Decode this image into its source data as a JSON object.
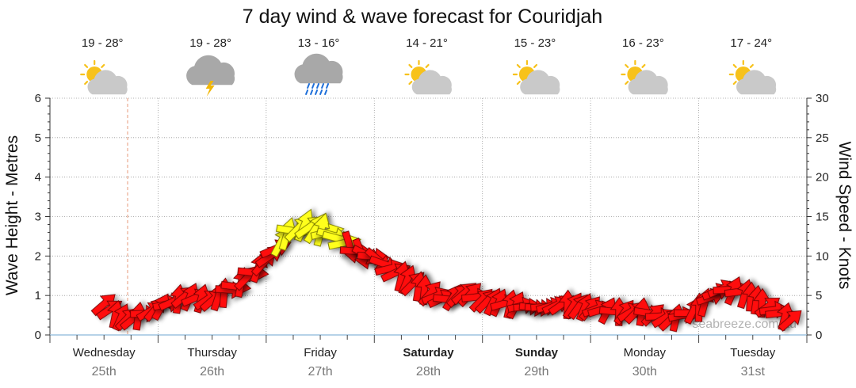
{
  "chart_data": {
    "type": "line",
    "title": "7 day wind & wave forecast for Couridjah",
    "ylabel_left": "Wave Height - Metres",
    "ylabel_right": "Wind Speed - Knots",
    "y_left_range": [
      0,
      6
    ],
    "y_left_ticks": [
      "0",
      "1",
      "2",
      "3",
      "4",
      "5",
      "6"
    ],
    "y_right_range": [
      0,
      30
    ],
    "y_right_ticks": [
      "0",
      "5",
      "10",
      "15",
      "20",
      "25",
      "30"
    ],
    "grid": true,
    "watermark": "seabreeze.com.au",
    "days": [
      {
        "day": "Wednesday",
        "date": "25th",
        "bold": false,
        "temp": "19 - 28°",
        "icon": "partly-sunny-icon"
      },
      {
        "day": "Thursday",
        "date": "26th",
        "bold": false,
        "temp": "19 - 28°",
        "icon": "storm-cloud-icon"
      },
      {
        "day": "Friday",
        "date": "27th",
        "bold": false,
        "temp": "13 - 16°",
        "icon": "rain-cloud-icon"
      },
      {
        "day": "Saturday",
        "date": "28th",
        "bold": true,
        "temp": "14 - 21°",
        "icon": "partly-sunny-icon"
      },
      {
        "day": "Sunday",
        "date": "29th",
        "bold": true,
        "temp": "15 - 23°",
        "icon": "partly-sunny-icon"
      },
      {
        "day": "Monday",
        "date": "30th",
        "bold": false,
        "temp": "16 - 23°",
        "icon": "partly-sunny-icon"
      },
      {
        "day": "Tuesday",
        "date": "31st",
        "bold": false,
        "temp": "17 - 24°",
        "icon": "partly-sunny-icon"
      }
    ],
    "series": [
      {
        "unit": "knots",
        "x_day": [
          0.5,
          0.62,
          0.75,
          0.9,
          1.0,
          1.25,
          1.5,
          1.75,
          2.0,
          2.2,
          2.35,
          2.5,
          2.65,
          2.85,
          3.0,
          3.25,
          3.5,
          3.65,
          3.85,
          4.0,
          4.25,
          4.5,
          4.75,
          5.0,
          5.25,
          5.5,
          5.75,
          6.0,
          6.2,
          6.4,
          6.6,
          6.85
        ],
        "values": [
          4.5,
          3.0,
          2.5,
          3.5,
          4.0,
          5.5,
          5.0,
          7.0,
          10.0,
          13.5,
          14.5,
          14.0,
          13.0,
          11.0,
          10.5,
          8.0,
          6.0,
          5.0,
          6.0,
          5.0,
          4.5,
          4.0,
          4.5,
          4.0,
          3.5,
          3.5,
          2.5,
          4.0,
          6.5,
          6.0,
          4.5,
          2.5
        ]
      }
    ]
  }
}
